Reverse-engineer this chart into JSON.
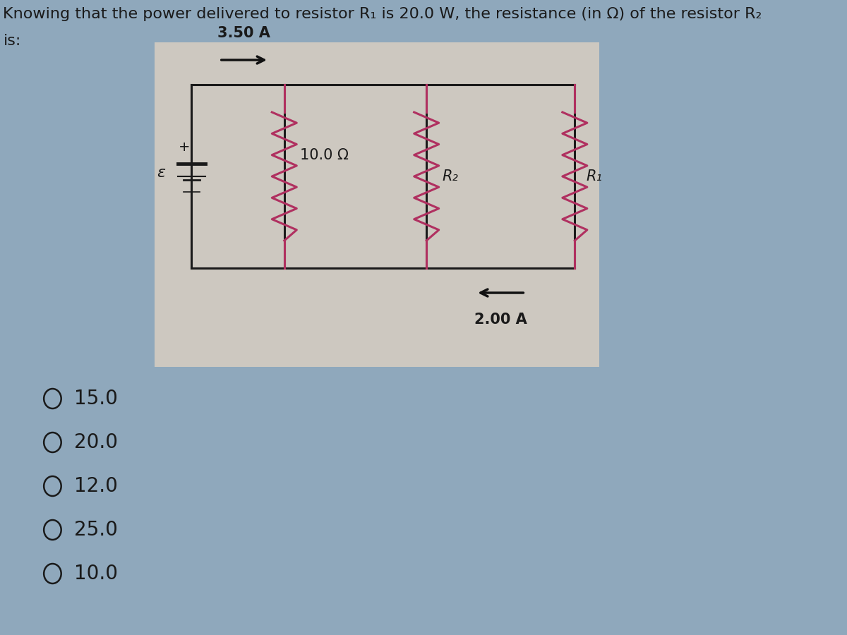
{
  "bg_color": "#8fa8bc",
  "circuit_bg": "#cdc8c0",
  "title_line1": "Knowing that the power delivered to resistor R₁ is 20.0 W, the resistance (in Ω) of the resistor R₂",
  "title_line2": "is:",
  "current_top": "3.50 A",
  "current_bottom": "2.00 A",
  "resistor_series_label": "10.0 Ω",
  "label_epsilon": "ε",
  "label_plus": "+",
  "label_R2": "R₂",
  "label_R1": "R₁",
  "choices": [
    "15.0",
    "20.0",
    "12.0",
    "25.0",
    "10.0"
  ],
  "font_color": "#1a1a1a",
  "circuit_line_color": "#1a1a1a",
  "resistor_color": "#b03060",
  "choice_font_size": 20,
  "title_font_size": 16,
  "arrow_color": "#111111"
}
